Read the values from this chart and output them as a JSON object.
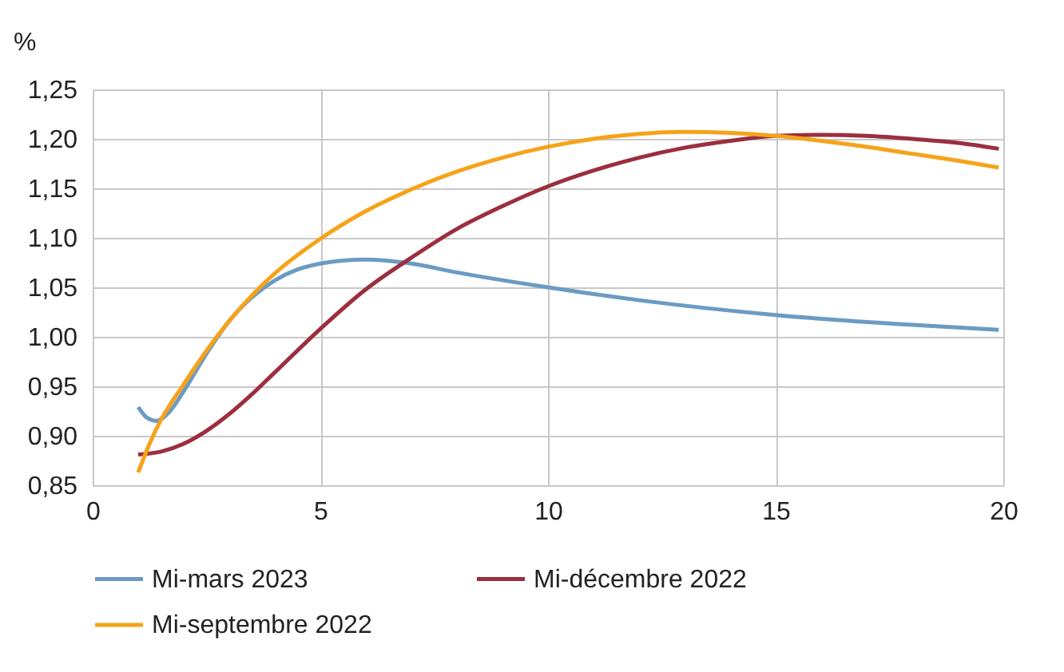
{
  "chart_data": {
    "type": "line",
    "ylabel": "%",
    "xlim": [
      0,
      20
    ],
    "xticks": [
      0,
      5,
      10,
      15,
      20
    ],
    "ylim": [
      0.85,
      1.25
    ],
    "yticks": [
      {
        "value": 0.85,
        "label": "0,85"
      },
      {
        "value": 0.9,
        "label": "0,90"
      },
      {
        "value": 0.95,
        "label": "0,95"
      },
      {
        "value": 1.0,
        "label": "1,00"
      },
      {
        "value": 1.05,
        "label": "1,05"
      },
      {
        "value": 1.1,
        "label": "1,10"
      },
      {
        "value": 1.15,
        "label": "1,15"
      },
      {
        "value": 1.2,
        "label": "1,20"
      },
      {
        "value": 1.25,
        "label": "1,25"
      }
    ],
    "grid": true,
    "legend": "bottom",
    "marker": "none",
    "line_style": "solid",
    "series": [
      {
        "name": "Mi-mars 2023",
        "color": "#6b9bc3",
        "x": [
          1,
          1.2,
          1.4,
          1.7,
          2,
          2.5,
          3,
          3.5,
          4,
          4.5,
          5,
          5.5,
          6,
          7,
          8,
          10,
          12,
          15,
          18,
          19.9
        ],
        "values": [
          0.929,
          0.918,
          0.915,
          0.925,
          0.945,
          0.983,
          1.016,
          1.04,
          1.057,
          1.068,
          1.074,
          1.077,
          1.078,
          1.074,
          1.065,
          1.05,
          1.037,
          1.022,
          1.012,
          1.007
        ]
      },
      {
        "name": "Mi-décembre 2022",
        "color": "#9b2f3e",
        "x": [
          1,
          1.5,
          2,
          2.5,
          3,
          3.5,
          4,
          5,
          6,
          7,
          8,
          9,
          10,
          11,
          12,
          13,
          14,
          15,
          16,
          17,
          18,
          19,
          19.9
        ],
        "values": [
          0.881,
          0.884,
          0.892,
          0.905,
          0.922,
          0.942,
          0.964,
          1.008,
          1.048,
          1.08,
          1.109,
          1.132,
          1.152,
          1.168,
          1.181,
          1.191,
          1.198,
          1.203,
          1.204,
          1.203,
          1.2,
          1.196,
          1.19
        ]
      },
      {
        "name": "Mi-septembre 2022",
        "color": "#f5a31a",
        "x": [
          1,
          1.25,
          1.5,
          2,
          2.5,
          3,
          3.5,
          4,
          5,
          6,
          7,
          8,
          9,
          10,
          11,
          12,
          13,
          14,
          15,
          16,
          17,
          18,
          19,
          19.9
        ],
        "values": [
          0.863,
          0.892,
          0.916,
          0.952,
          0.986,
          1.016,
          1.042,
          1.064,
          1.099,
          1.127,
          1.149,
          1.167,
          1.181,
          1.192,
          1.2,
          1.205,
          1.207,
          1.206,
          1.203,
          1.198,
          1.192,
          1.185,
          1.178,
          1.171
        ]
      }
    ]
  }
}
